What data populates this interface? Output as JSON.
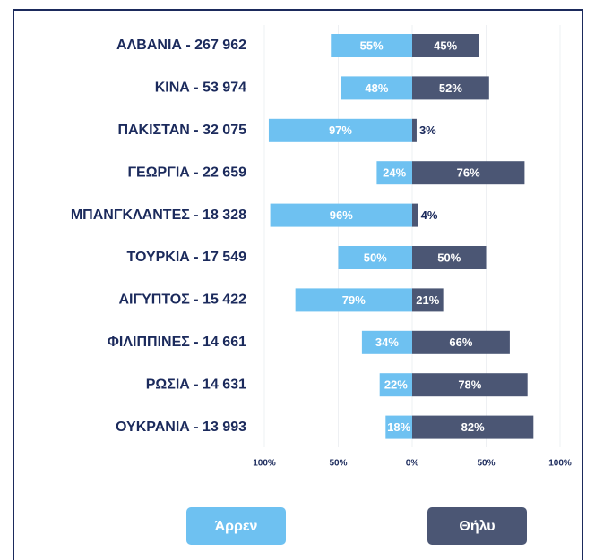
{
  "chart_data": {
    "type": "diverging_bar",
    "categories": [
      "ΑΛΒΑΝΙΑ - 267 962",
      "ΚΙΝΑ - 53 974",
      "ΠΑΚΙΣΤΑΝ - 32 075",
      "ΓΕΩΡΓΙΑ - 22 659",
      "ΜΠΑΝΓΚΛΑΝΤΕΣ - 18 328",
      "ΤΟΥΡΚΙΑ - 17 549",
      "ΑΙΓΥΠΤΟΣ - 15 422",
      "ΦΙΛΙΠΠΙΝΕΣ - 14 661",
      "ΡΩΣΙΑ - 14 631",
      "ΟΥΚΡΑΝΙΑ - 13 993"
    ],
    "series": [
      {
        "name": "Άρρεν",
        "color": "#6ec1f1",
        "side": "left",
        "values": [
          55,
          48,
          97,
          24,
          96,
          50,
          79,
          34,
          22,
          18
        ],
        "value_labels": [
          "55%",
          "48%",
          "97%",
          "24%",
          "96%",
          "50%",
          "79%",
          "34%",
          "22%",
          "18%"
        ]
      },
      {
        "name": "Θήλυ",
        "color": "#4b5674",
        "side": "right",
        "values": [
          45,
          52,
          3,
          76,
          4,
          50,
          21,
          66,
          78,
          82
        ],
        "value_labels": [
          "45%",
          "52%",
          "3%",
          "76%",
          "4%",
          "50%",
          "21%",
          "66%",
          "78%",
          "82%"
        ]
      }
    ],
    "xlim": [
      -100,
      100
    ],
    "xticks": [
      {
        "value": -100,
        "label": "100%"
      },
      {
        "value": -50,
        "label": "50%"
      },
      {
        "value": 0,
        "label": "0%"
      },
      {
        "value": 50,
        "label": "50%"
      },
      {
        "value": 100,
        "label": "100%"
      }
    ],
    "grid": true
  }
}
